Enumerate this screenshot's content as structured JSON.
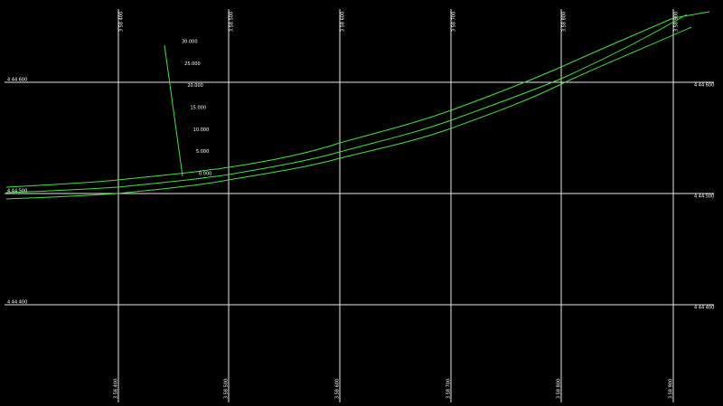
{
  "grid": {
    "top_labels": [
      "3 58 400",
      "3 58 500",
      "3 58 600",
      "3 58 700",
      "3 58 800",
      "3 58 900"
    ],
    "bottom_labels": [
      "3 58 400",
      "3 58 500",
      "3 58 600",
      "3 58 700",
      "3 58 800",
      "3 58 900"
    ],
    "left_labels": [
      "4 44 600",
      "4 44 500",
      "4 44 400"
    ],
    "right_labels": [
      "4 44 600",
      "4 44 500",
      "4 44 400"
    ]
  },
  "profile_labels": [
    "30.000",
    "25.000",
    "20.000",
    "15.000",
    "10.000",
    "5.000",
    "0.000"
  ]
}
